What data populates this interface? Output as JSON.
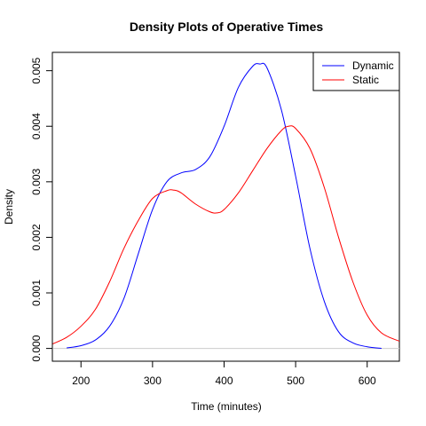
{
  "chart_data": {
    "type": "line",
    "title": "Density Plots of Operative Times",
    "xlabel": "Time (minutes)",
    "ylabel": "Density",
    "xlim": [
      160,
      645
    ],
    "ylim": [
      -0.00023,
      0.00533
    ],
    "x_ticks": [
      200,
      300,
      400,
      500,
      600
    ],
    "y_ticks": [
      0.0,
      0.001,
      0.002,
      0.003,
      0.004,
      0.005
    ],
    "y_tick_labels": [
      "0.000",
      "0.001",
      "0.002",
      "0.003",
      "0.004",
      "0.005"
    ],
    "grid": false,
    "baseline": {
      "y": 0,
      "color": "#cccccc"
    },
    "legend": {
      "position": "top-right"
    },
    "series": [
      {
        "name": "Dynamic",
        "color": "#0000ff",
        "x": [
          180,
          200,
          220,
          240,
          260,
          280,
          300,
          320,
          340,
          360,
          380,
          400,
          420,
          440,
          450,
          460,
          480,
          500,
          520,
          540,
          560,
          580,
          600,
          620
        ],
        "y": [
          1e-05,
          5e-05,
          0.00015,
          0.0004,
          0.0009,
          0.0017,
          0.0025,
          0.003,
          0.00316,
          0.00322,
          0.00345,
          0.004,
          0.0047,
          0.00508,
          0.00512,
          0.00505,
          0.0043,
          0.0031,
          0.0018,
          0.00085,
          0.0003,
          0.0001,
          3e-05,
          0.0
        ]
      },
      {
        "name": "Static",
        "color": "#ff0000",
        "x": [
          160,
          180,
          200,
          220,
          240,
          260,
          280,
          300,
          320,
          330,
          340,
          360,
          380,
          390,
          400,
          420,
          440,
          460,
          480,
          490,
          500,
          520,
          540,
          560,
          580,
          600,
          620,
          645
        ],
        "y": [
          8e-05,
          0.0002,
          0.0004,
          0.0007,
          0.0012,
          0.0018,
          0.0023,
          0.0027,
          0.00284,
          0.00285,
          0.0028,
          0.0026,
          0.00246,
          0.00244,
          0.0025,
          0.0028,
          0.0032,
          0.0036,
          0.00392,
          0.004,
          0.00396,
          0.0036,
          0.0029,
          0.002,
          0.0012,
          0.0006,
          0.00028,
          0.00013
        ]
      }
    ]
  }
}
